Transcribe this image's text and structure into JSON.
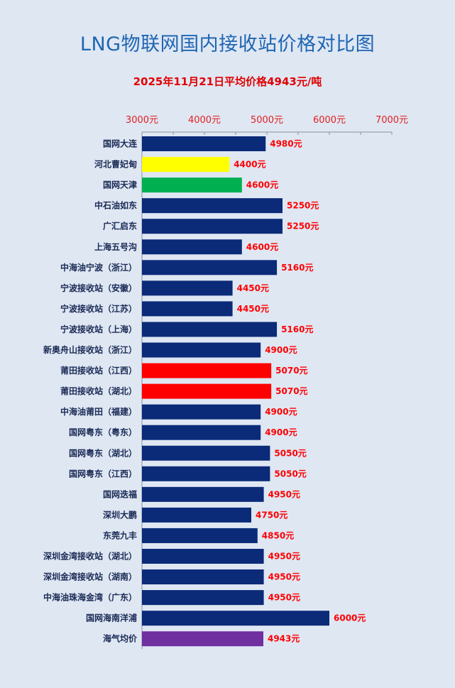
{
  "title": "LNG物联网国内接收站价格对比图",
  "subtitle": "2025年11月21日平均价格4943元/吨",
  "colors": {
    "default": "#0b2a78",
    "yellow": "#ffff00",
    "green": "#00b050",
    "red": "#ff0000",
    "purple": "#7030a0",
    "tick": "#e02020",
    "value": "#ff0000"
  },
  "chart_data": {
    "type": "bar",
    "orientation": "horizontal",
    "xlim": [
      3000,
      7000
    ],
    "tick_labels": [
      "3000元",
      "4000元",
      "5000元",
      "6000元",
      "7000元"
    ],
    "ticks": [
      3000,
      4000,
      5000,
      6000,
      7000
    ],
    "axis_position": "top",
    "grid": false,
    "categories": [
      "国网大连",
      "河北曹妃甸",
      "国网天津",
      "中石油如东",
      "广汇启东",
      "上海五号沟",
      "中海油宁波（浙江）",
      "宁波接收站（安徽）",
      "宁波接收站（江苏）",
      "宁波接收站（上海）",
      "新奥舟山接收站（浙江）",
      "莆田接收站（江西）",
      "莆田接收站（湖北）",
      "中海油莆田（福建）",
      "国网粤东（粤东）",
      "国网粤东（湖北）",
      "国网粤东（江西）",
      "国网迭福",
      "深圳大鹏",
      "东莞九丰",
      "深圳金湾接收站（湖北）",
      "深圳金湾接收站（湖南）",
      "中海油珠海金湾（广东）",
      "国网海南洋浦",
      "海气均价"
    ],
    "values": [
      4980,
      4400,
      4600,
      5250,
      5250,
      4600,
      5160,
      4450,
      4450,
      5160,
      4900,
      5070,
      5070,
      4900,
      4900,
      5050,
      5050,
      4950,
      4750,
      4850,
      4950,
      4950,
      4950,
      6000,
      4943
    ],
    "value_labels": [
      "4980元",
      "4400元",
      "4600元",
      "5250元",
      "5250元",
      "4600元",
      "5160元",
      "4450元",
      "4450元",
      "5160元",
      "4900元",
      "5070元",
      "5070元",
      "4900元",
      "4900元",
      "5050元",
      "5050元",
      "4950元",
      "4750元",
      "4850元",
      "4950元",
      "4950元",
      "4950元",
      "6000元",
      "4943元"
    ],
    "bar_colors": [
      "default",
      "yellow",
      "green",
      "default",
      "default",
      "default",
      "default",
      "default",
      "default",
      "default",
      "default",
      "red",
      "red",
      "default",
      "default",
      "default",
      "default",
      "default",
      "default",
      "default",
      "default",
      "default",
      "default",
      "default",
      "purple"
    ]
  }
}
